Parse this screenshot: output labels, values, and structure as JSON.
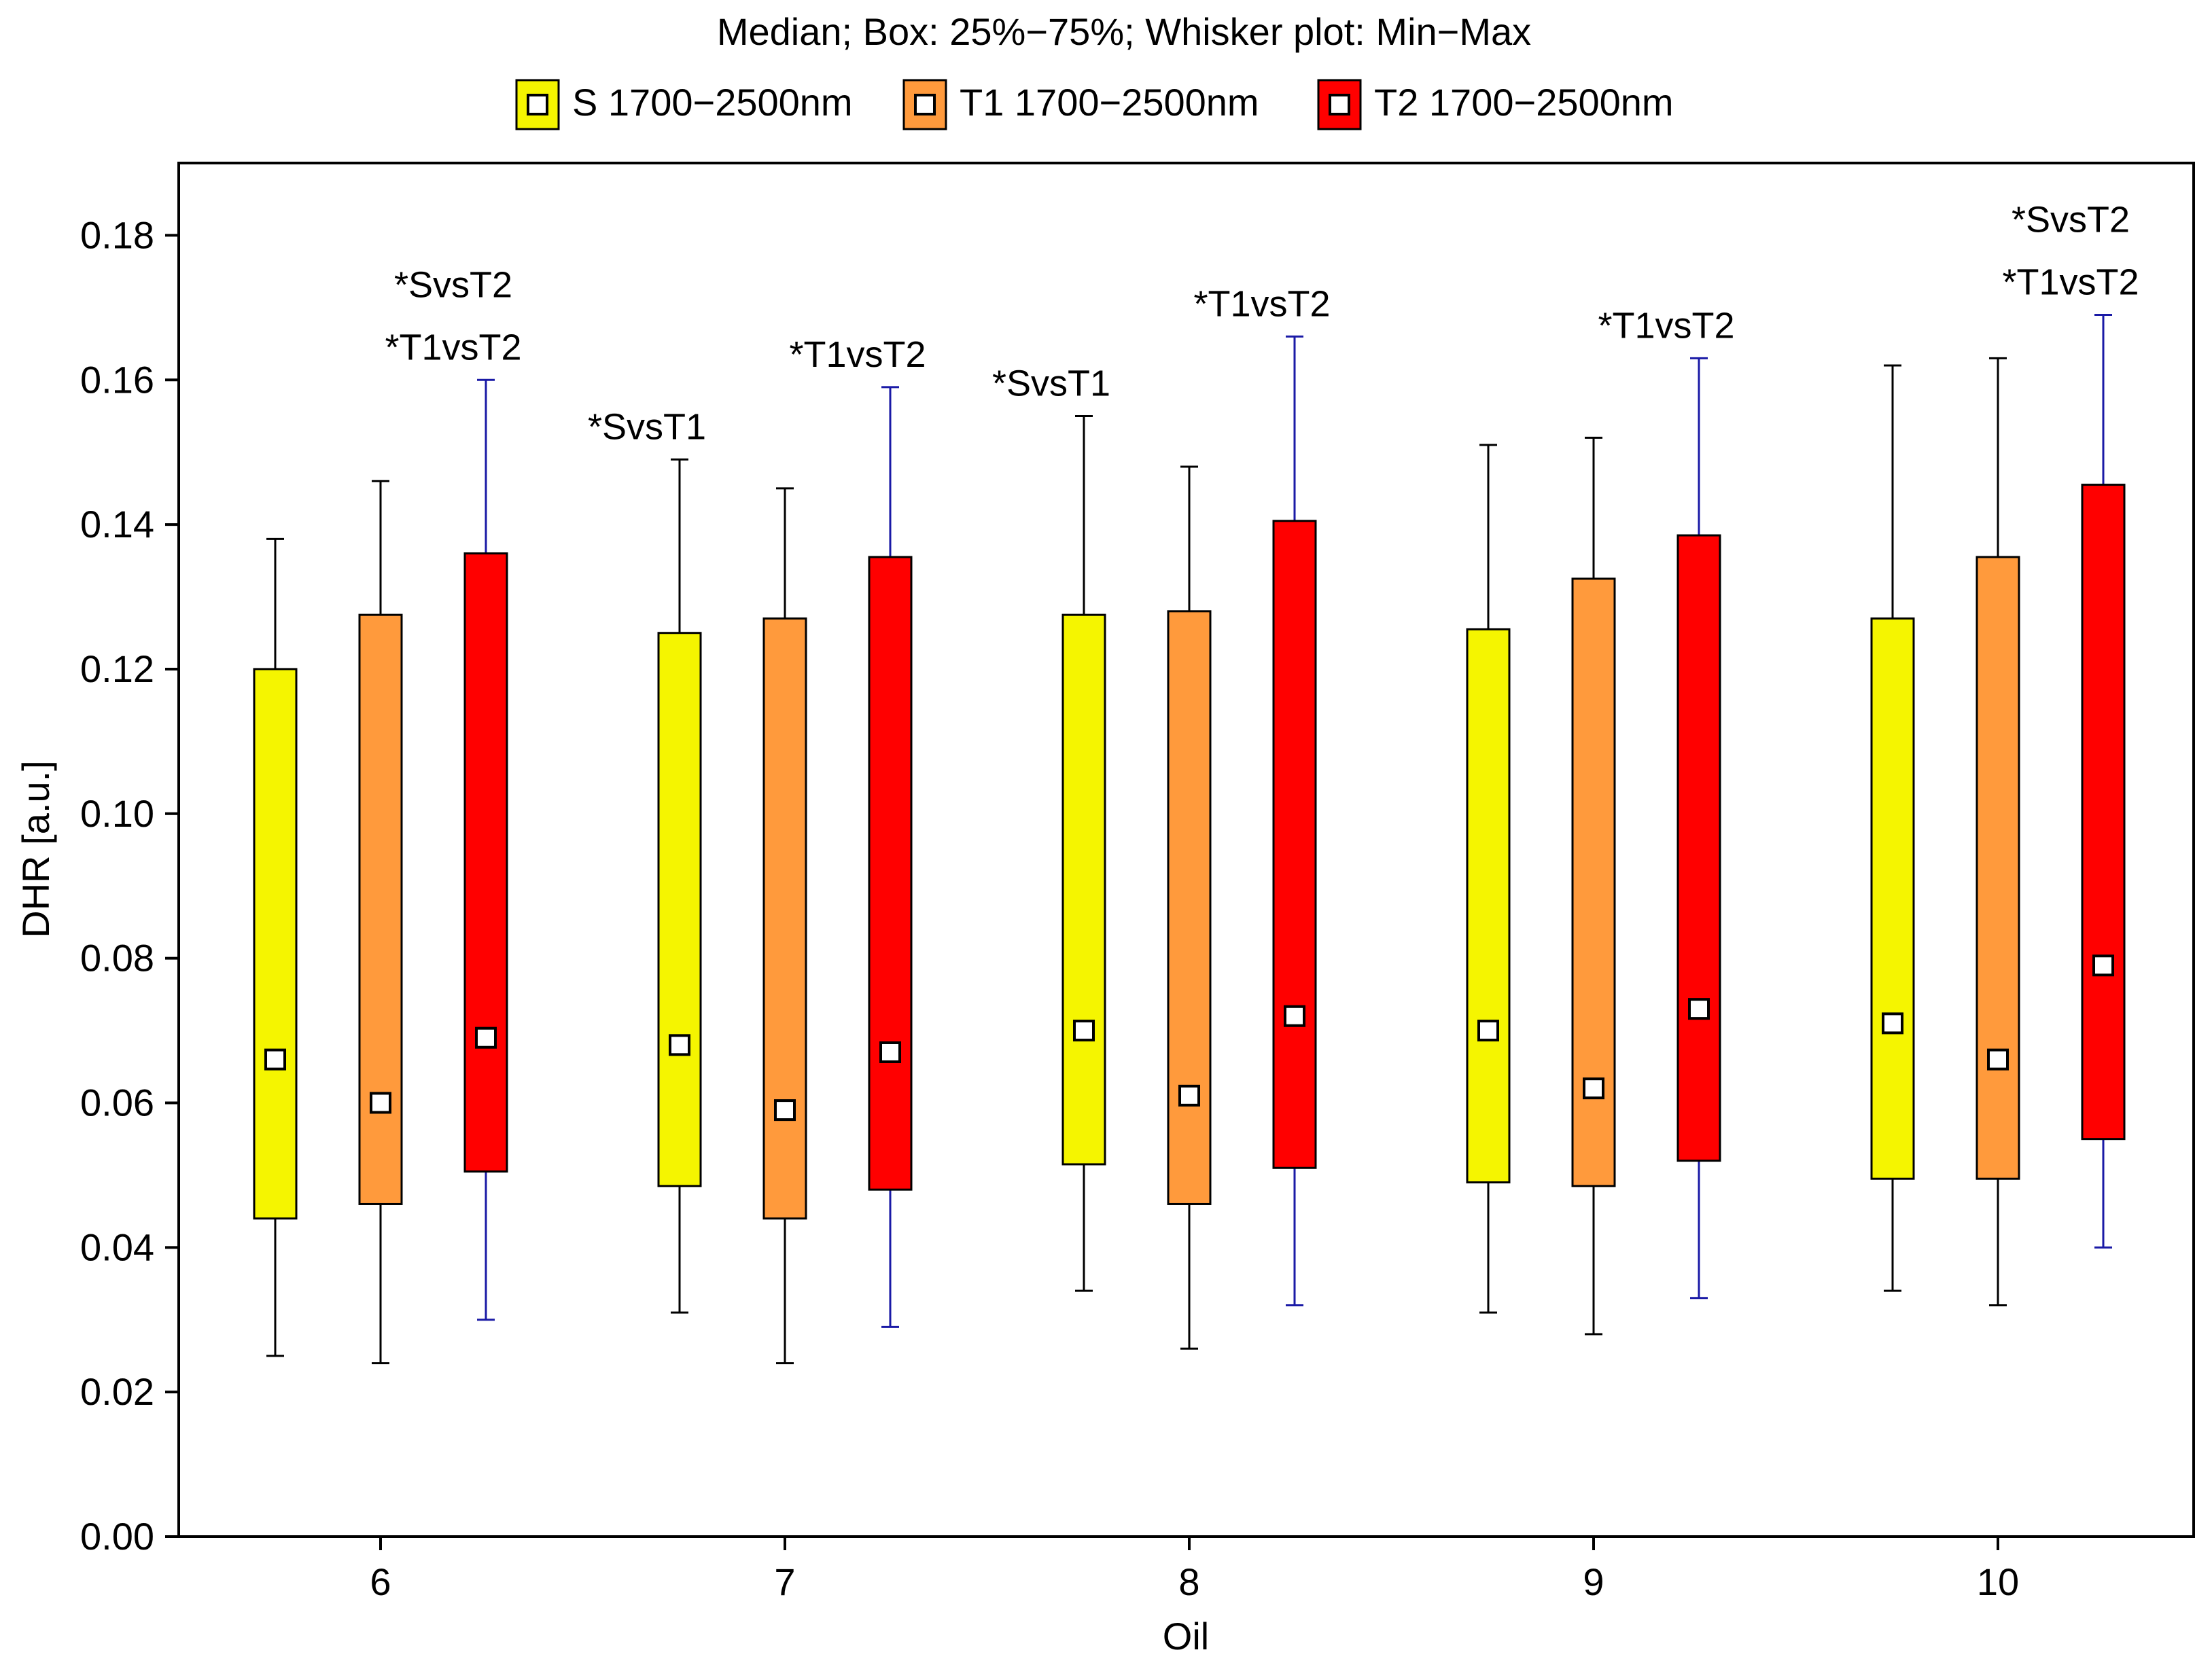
{
  "chart_data": {
    "type": "boxplot",
    "title": "Median; Box: 25%−75%; Whisker plot: Min−Max",
    "xlabel": "Oil",
    "ylabel": "DHR [a.u.]",
    "ylim": [
      0,
      0.19
    ],
    "yticks": [
      "0.00",
      "0.02",
      "0.04",
      "0.06",
      "0.08",
      "0.10",
      "0.12",
      "0.14",
      "0.16",
      "0.18"
    ],
    "ytick_values": [
      0,
      0.02,
      0.04,
      0.06,
      0.08,
      0.1,
      0.12,
      0.14,
      0.16,
      0.18
    ],
    "categories": [
      "6",
      "7",
      "8",
      "9",
      "10"
    ],
    "series": [
      {
        "name": "S 1700−2500nm",
        "color": "#F5F500",
        "whisker_color": "#000000",
        "median": [
          0.066,
          0.068,
          0.07,
          0.07,
          0.071
        ],
        "q1": [
          0.044,
          0.0485,
          0.0515,
          0.049,
          0.0495
        ],
        "q3": [
          0.12,
          0.125,
          0.1275,
          0.1255,
          0.127
        ],
        "min": [
          0.025,
          0.031,
          0.034,
          0.031,
          0.034
        ],
        "max": [
          0.138,
          0.149,
          0.155,
          0.151,
          0.162
        ]
      },
      {
        "name": "T1 1700−2500nm",
        "color": "#FF9A3C",
        "whisker_color": "#000000",
        "median": [
          0.06,
          0.059,
          0.061,
          0.062,
          0.066
        ],
        "q1": [
          0.046,
          0.044,
          0.046,
          0.0485,
          0.0495
        ],
        "q3": [
          0.1275,
          0.127,
          0.128,
          0.1325,
          0.1355
        ],
        "min": [
          0.024,
          0.024,
          0.026,
          0.028,
          0.032
        ],
        "max": [
          0.146,
          0.145,
          0.148,
          0.152,
          0.163
        ]
      },
      {
        "name": "T2 1700−2500nm",
        "color": "#FF0000",
        "whisker_color": "#1A1AA6",
        "median": [
          0.069,
          0.067,
          0.072,
          0.073,
          0.079
        ],
        "q1": [
          0.0505,
          0.048,
          0.051,
          0.052,
          0.055
        ],
        "q3": [
          0.136,
          0.1355,
          0.1405,
          0.1385,
          0.1455
        ],
        "min": [
          0.03,
          0.029,
          0.032,
          0.033,
          0.04
        ],
        "max": [
          0.16,
          0.159,
          0.166,
          0.163,
          0.169
        ]
      }
    ],
    "annotations": [
      {
        "text": "*SvsT2",
        "category": 0,
        "series": 2,
        "line": 2
      },
      {
        "text": "*T1vsT2",
        "category": 0,
        "series": 2,
        "line": 1
      },
      {
        "text": "*SvsT1",
        "category": 1,
        "series": 0,
        "line": 1
      },
      {
        "text": "*T1vsT2",
        "category": 1,
        "series": 2,
        "line": 1
      },
      {
        "text": "*SvsT1",
        "category": 2,
        "series": 0,
        "line": 1
      },
      {
        "text": "*T1vsT2",
        "category": 2,
        "series": 2,
        "line": 1
      },
      {
        "text": "*T1vsT2",
        "category": 3,
        "series": 2,
        "line": 1
      },
      {
        "text": "*SvsT2",
        "category": 4,
        "series": 2,
        "line": 2
      },
      {
        "text": "*T1vsT2",
        "category": 4,
        "series": 2,
        "line": 1
      }
    ]
  }
}
